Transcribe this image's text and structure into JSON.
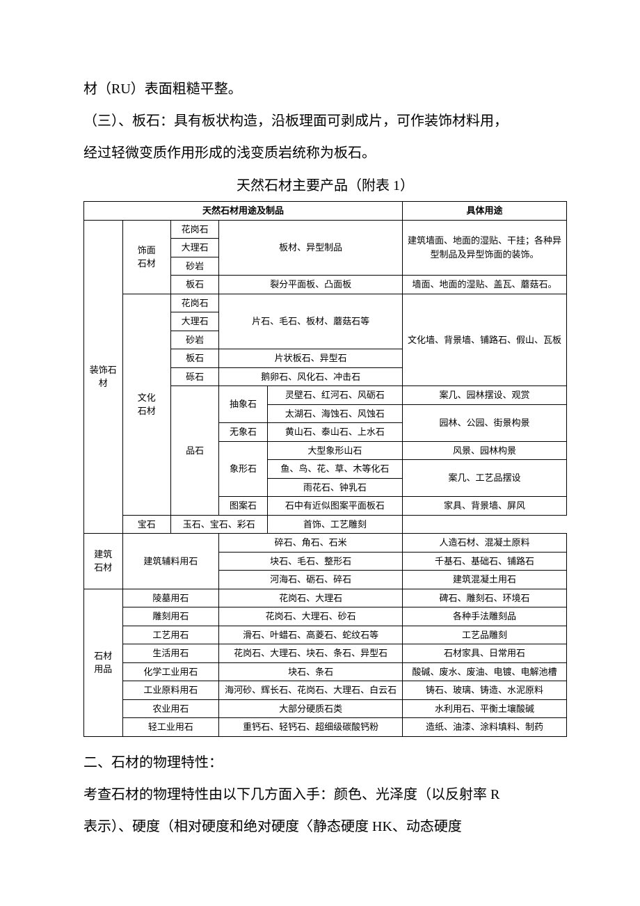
{
  "paragraphs": {
    "p1_a": "材（",
    "p1_ru": "RU",
    "p1_b": "）表面粗糙平整。",
    "p2": "（三）、板石：具有板状构造，沿板理面可剥成片，可作装饰材料用，",
    "p3": "经过轻微变质作用形成的浅变质岩统称为板石。"
  },
  "table_title": "天然石材主要产品（附表 1）",
  "h1": "天然石材用途及制品",
  "h2": "具体用途",
  "sec1": {
    "title": "装饰石材",
    "sub1": {
      "title": "饰面\n石材",
      "r1c": "花岗石",
      "r1d": "板材、异型制品",
      "r2c": "大理石",
      "r3c": "砂岩",
      "r4c": "板石",
      "r4d": "裂分平面板、凸面板",
      "use1": "建筑墙面、地面的湿贴、干挂；各种异型制品及异型饰面的装饰。",
      "use2": "墙面、地面的湿贴、盖瓦、蘑菇石。"
    },
    "sub2": {
      "title": "文化\n石材",
      "r1c": "花岗石",
      "r1d": "片石、毛石、板材、蘑菇石等",
      "r2c": "大理石",
      "r3c": "砂岩",
      "r4c": "板石",
      "r4d": "片状板石、异型石",
      "r5c": "砾石",
      "r5d": "鹅卵石、风化石、冲击石",
      "use1": "文化墙、背景墙、铺路石、假山、瓦板",
      "pinshi": "品石",
      "chou": "抽象石",
      "chou1": "灵壁石、红河石、风砺石",
      "chou1u": "案几、园林摆设、观赏",
      "chou2": "太湖石、海蚀石、风蚀石",
      "chou2u": "园林、公园、街景构景",
      "wu": "无象石",
      "wu1": "黄山石、泰山石、上水石",
      "xiang": "象形石",
      "xiang1": "大型象形山石",
      "xiang1u": "风景、园林构景",
      "xiang2": "鱼、鸟、花、草、木等化石",
      "xiang2u": "案几、工艺品摆设",
      "xiang3": "雨花石、钟乳石",
      "tu": "图案石",
      "tu1": "石中有近似图案平面板石",
      "tu1u": "家具、背景墙、屏风",
      "baoshi": "宝石",
      "baoshi1": "玉石、宝石、彩石",
      "baoshi1u": "首饰、工艺雕刻"
    }
  },
  "sec2": {
    "title": "建筑\n石材",
    "sub": "建筑辅料用石",
    "r1d": "碎石、角石、石米",
    "r1u": "人造石材、混凝土原料",
    "r2d": "块石、毛石、整形石",
    "r2u": "千基石、基础石、铺路石",
    "r3d": "河海石、砺石、碎石",
    "r3u": "建筑混凝土用石"
  },
  "sec3": {
    "title": "石材\n用品",
    "r1b": "陵墓用石",
    "r1d": "花岗石、大理石",
    "r1u": "碑石、雕刻石、环境石",
    "r2b": "雕刻用石",
    "r2d": "花岗石、大理石、砂石",
    "r2u": "各种手法雕刻品",
    "r3b": "工艺用石",
    "r3d": "滑石、叶蜡石、高菱石、蛇纹石等",
    "r3u": "工艺品雕刻",
    "r4b": "生活用石",
    "r4d": "花岗石、大理石、块石、条石、异型石",
    "r4u": "石材家具、日常用石",
    "r5b": "化学工业用石",
    "r5d": "块石、条石",
    "r5u": "酸碱、废水、废油、电镀、电解池槽",
    "r6b": "工业原料用石",
    "r6d": "海河砂、辉长石、花岗石、大理石、白云石",
    "r6u": "铸石、玻璃、铸造、水泥原料",
    "r7b": "农业用石",
    "r7d": "大部分硬质石类",
    "r7u": "水利用石、平衡土壤酸碱",
    "r8b": "轻工业用石",
    "r8d": "重钙石、轻钙石、超细级碳酸钙粉",
    "r8u": "造纸、油漆、涂料填料、制药"
  },
  "after": {
    "p4": "二、石材的物理特性：",
    "p5a": "考查石材的物理特性由以下几方面入手：颜色、光泽度（以反射率 ",
    "p5r": "R",
    "p6a": "表示）、硬度（相对硬度和绝对硬度〈静态硬度 ",
    "p6hk": "HK",
    "p6b": "、动态硬度"
  }
}
